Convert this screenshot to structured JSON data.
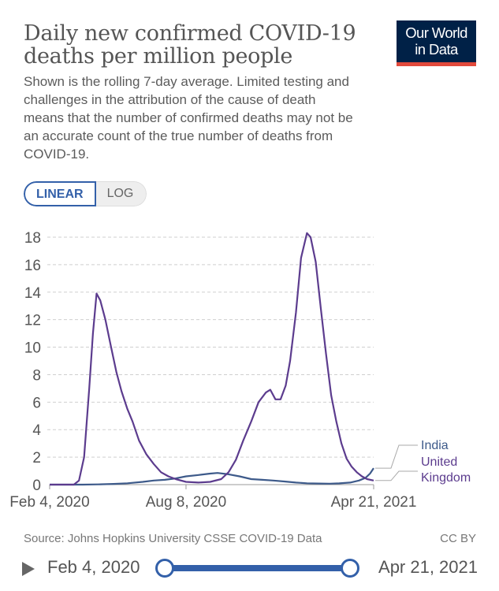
{
  "header": {
    "title": "Daily new confirmed COVID-19 deaths per million people",
    "subtitle": "Shown is the rolling 7-day average. Limited testing and challenges in the attribution of the cause of death means that the number of confirmed deaths may not be an accurate count of the true number of deaths from COVID-19.",
    "logo_line1": "Our World",
    "logo_line2": "in Data",
    "logo_color": "#002147",
    "logo_accent": "#e2493b"
  },
  "controls": {
    "linear_label": "LINEAR",
    "log_label": "LOG",
    "selected": "LINEAR"
  },
  "footer": {
    "source": "Source: Johns Hopkins University CSSE COVID-19 Data",
    "license": "CC BY"
  },
  "timeline": {
    "start_label": "Feb 4, 2020",
    "end_label": "Apr 21, 2021",
    "play_icon": "play-icon",
    "range_fraction": [
      0,
      1
    ]
  },
  "chart_data": {
    "type": "line",
    "title": "Daily new confirmed COVID-19 deaths per million people",
    "xlabel": "",
    "ylabel": "",
    "x_axis_type": "date",
    "x_ticks": [
      "Feb 4, 2020",
      "Aug 8, 2020",
      "Apr 21, 2021"
    ],
    "y_ticks": [
      0,
      2,
      4,
      6,
      8,
      10,
      12,
      14,
      16,
      18
    ],
    "ylim": [
      0,
      18.8
    ],
    "xlim": [
      "2020-02-04",
      "2021-04-21"
    ],
    "grid": "horizontal dashed",
    "legend": "right, line-end labels",
    "series": [
      {
        "name": "India",
        "color": "#3d5a8a",
        "points": [
          [
            "2020-02-04",
            0
          ],
          [
            "2020-03-20",
            0
          ],
          [
            "2020-04-10",
            0.02
          ],
          [
            "2020-05-01",
            0.05
          ],
          [
            "2020-05-20",
            0.1
          ],
          [
            "2020-06-10",
            0.2
          ],
          [
            "2020-06-25",
            0.3
          ],
          [
            "2020-07-10",
            0.35
          ],
          [
            "2020-07-25",
            0.45
          ],
          [
            "2020-08-08",
            0.6
          ],
          [
            "2020-08-25",
            0.7
          ],
          [
            "2020-09-10",
            0.8
          ],
          [
            "2020-09-20",
            0.85
          ],
          [
            "2020-10-05",
            0.75
          ],
          [
            "2020-10-20",
            0.6
          ],
          [
            "2020-11-05",
            0.4
          ],
          [
            "2020-11-20",
            0.35
          ],
          [
            "2020-12-05",
            0.3
          ],
          [
            "2020-12-20",
            0.23
          ],
          [
            "2021-01-05",
            0.15
          ],
          [
            "2021-01-20",
            0.1
          ],
          [
            "2021-02-05",
            0.08
          ],
          [
            "2021-02-20",
            0.07
          ],
          [
            "2021-03-05",
            0.09
          ],
          [
            "2021-03-20",
            0.15
          ],
          [
            "2021-04-01",
            0.3
          ],
          [
            "2021-04-10",
            0.5
          ],
          [
            "2021-04-16",
            0.8
          ],
          [
            "2021-04-21",
            1.2
          ]
        ]
      },
      {
        "name": "United Kingdom",
        "color": "#5c3c8e",
        "points": [
          [
            "2020-02-04",
            0
          ],
          [
            "2020-03-08",
            0
          ],
          [
            "2020-03-15",
            0.3
          ],
          [
            "2020-03-22",
            2
          ],
          [
            "2020-03-29",
            7
          ],
          [
            "2020-04-03",
            11
          ],
          [
            "2020-04-08",
            13.9
          ],
          [
            "2020-04-13",
            13.4
          ],
          [
            "2020-04-20",
            12
          ],
          [
            "2020-04-27",
            10.2
          ],
          [
            "2020-05-05",
            8.2
          ],
          [
            "2020-05-12",
            6.8
          ],
          [
            "2020-05-20",
            5.5
          ],
          [
            "2020-05-27",
            4.6
          ],
          [
            "2020-06-05",
            3.2
          ],
          [
            "2020-06-15",
            2.2
          ],
          [
            "2020-06-25",
            1.5
          ],
          [
            "2020-07-05",
            0.9
          ],
          [
            "2020-07-15",
            0.6
          ],
          [
            "2020-07-25",
            0.4
          ],
          [
            "2020-08-08",
            0.2
          ],
          [
            "2020-08-25",
            0.15
          ],
          [
            "2020-09-10",
            0.2
          ],
          [
            "2020-09-25",
            0.4
          ],
          [
            "2020-10-05",
            0.9
          ],
          [
            "2020-10-15",
            1.8
          ],
          [
            "2020-10-25",
            3.2
          ],
          [
            "2020-11-05",
            4.6
          ],
          [
            "2020-11-15",
            6.0
          ],
          [
            "2020-11-25",
            6.7
          ],
          [
            "2020-12-01",
            6.9
          ],
          [
            "2020-12-08",
            6.2
          ],
          [
            "2020-12-15",
            6.2
          ],
          [
            "2020-12-22",
            7.2
          ],
          [
            "2020-12-28",
            9.0
          ],
          [
            "2021-01-05",
            12.5
          ],
          [
            "2021-01-12",
            16.5
          ],
          [
            "2021-01-20",
            18.3
          ],
          [
            "2021-01-25",
            18
          ],
          [
            "2021-02-01",
            16.2
          ],
          [
            "2021-02-08",
            12.8
          ],
          [
            "2021-02-15",
            9.5
          ],
          [
            "2021-02-22",
            6.5
          ],
          [
            "2021-03-01",
            4.6
          ],
          [
            "2021-03-08",
            3.0
          ],
          [
            "2021-03-15",
            1.9
          ],
          [
            "2021-03-22",
            1.3
          ],
          [
            "2021-03-29",
            0.9
          ],
          [
            "2021-04-05",
            0.6
          ],
          [
            "2021-04-12",
            0.4
          ],
          [
            "2021-04-21",
            0.3
          ]
        ]
      }
    ],
    "legend_labels": [
      "India",
      "United",
      "Kingdom"
    ]
  }
}
